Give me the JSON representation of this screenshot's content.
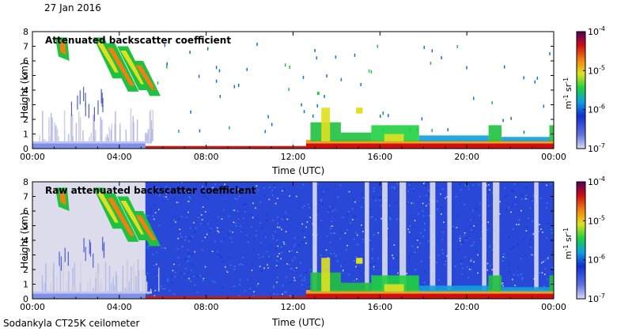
{
  "date": "27 Jan 2016",
  "footer": "Sodankyla CT25K ceilometer",
  "chart_data": [
    {
      "type": "heatmap",
      "title": "Attenuated backscatter coefficient",
      "xlabel": "Time (UTC)",
      "ylabel": "Height (km)",
      "xticks": [
        "00:00",
        "04:00",
        "08:00",
        "12:00",
        "16:00",
        "20:00",
        "00:00"
      ],
      "yticks": [
        "0",
        "1",
        "2",
        "3",
        "4",
        "5",
        "6",
        "7",
        "8"
      ],
      "xlim_hours": [
        0,
        24
      ],
      "ylim_km": [
        0,
        8
      ],
      "colorbar": {
        "label": "m-1 sr-1",
        "label_parts": [
          "m",
          "-1",
          " sr",
          "-1"
        ],
        "scale": "log",
        "ticks": [
          {
            "base": "10",
            "exp": "-4"
          },
          {
            "base": "10",
            "exp": "-5"
          },
          {
            "base": "10",
            "exp": "-6"
          },
          {
            "base": "10",
            "exp": "-7"
          }
        ],
        "range": [
          1e-07,
          0.0001
        ]
      }
    },
    {
      "type": "heatmap",
      "title": "Raw attenuated backscatter coefficient",
      "xlabel": "Time (UTC)",
      "ylabel": "Height (km)",
      "xticks": [
        "00:00",
        "04:00",
        "08:00",
        "12:00",
        "16:00",
        "20:00",
        "00:00"
      ],
      "yticks": [
        "0",
        "1",
        "2",
        "3",
        "4",
        "5",
        "6",
        "7",
        "8"
      ],
      "xlim_hours": [
        0,
        24
      ],
      "ylim_km": [
        0,
        8
      ],
      "colorbar": {
        "label": "m-1 sr-1",
        "label_parts": [
          "m",
          "-1",
          " sr",
          "-1"
        ],
        "scale": "log",
        "ticks": [
          {
            "base": "10",
            "exp": "-4"
          },
          {
            "base": "10",
            "exp": "-5"
          },
          {
            "base": "10",
            "exp": "-6"
          },
          {
            "base": "10",
            "exp": "-7"
          }
        ],
        "range": [
          1e-07,
          0.0001
        ]
      }
    }
  ]
}
